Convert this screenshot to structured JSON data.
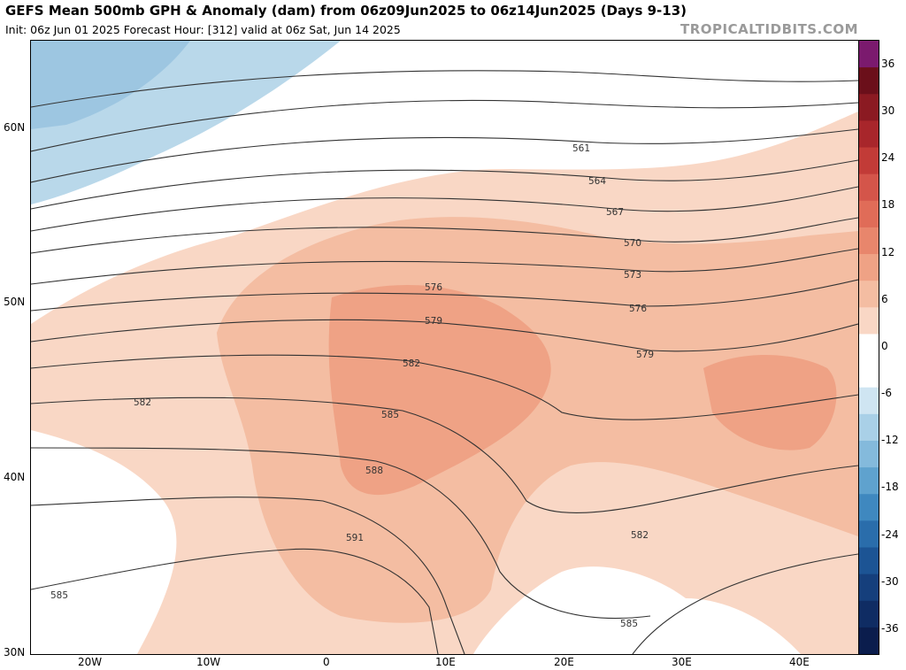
{
  "header": {
    "title": "GEFS Mean 500mb GPH & Anomaly (dam) from 06z09Jun2025 to 06z14Jun2025 (Days 9-13)",
    "subtitle": "Init: 06z Jun 01 2025   Forecast Hour: [312]   valid at 06z Sat, Jun 14 2025",
    "brand": "TROPICALTIDBITS.COM"
  },
  "axes": {
    "lat_labels": [
      "60N",
      "50N",
      "40N",
      "30N"
    ],
    "lon_labels": [
      "20W",
      "10W",
      "0",
      "10E",
      "20E",
      "30E",
      "40E"
    ]
  },
  "colorbar": {
    "labels": [
      "36",
      "30",
      "24",
      "18",
      "12",
      "6",
      "0",
      "-6",
      "-12",
      "-18",
      "-24",
      "-30",
      "-36"
    ],
    "colors": [
      "#7b1a6e",
      "#6b0f1a",
      "#8b1a22",
      "#a8262b",
      "#c23b37",
      "#d4554a",
      "#e06c58",
      "#e8866c",
      "#efa285",
      "#f4bda2",
      "#f9d7c5",
      "#ffffff",
      "#ffffff",
      "#cfe5f2",
      "#a9d0e7",
      "#84badc",
      "#5fa2ce",
      "#3f88bf",
      "#2a6dab",
      "#1c5494",
      "#153f7c",
      "#0f2c63",
      "#0b1d4d"
    ]
  },
  "map": {
    "contour_labels": [
      "561",
      "564",
      "567",
      "570",
      "573",
      "576",
      "579",
      "582",
      "585",
      "588",
      "591",
      "576",
      "579",
      "582",
      "585",
      "582",
      "585"
    ]
  }
}
